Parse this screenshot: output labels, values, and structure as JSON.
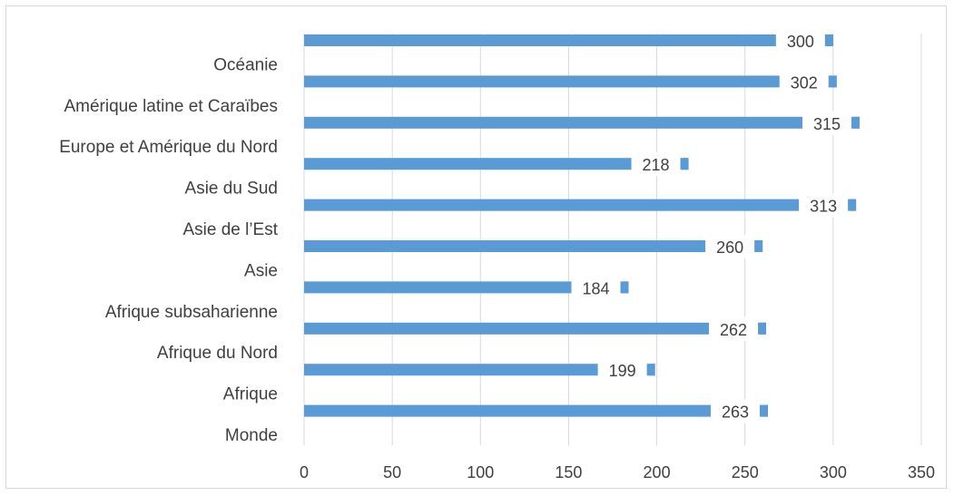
{
  "chart_data": {
    "type": "bar",
    "orientation": "horizontal",
    "categories": [
      "Monde",
      "Afrique",
      "Afrique du Nord",
      "Afrique subsaharienne",
      "Asie",
      "Asie de l’Est",
      "Asie du Sud",
      "Europe et Amérique du Nord",
      "Amérique latine et Caraïbes",
      "Océanie"
    ],
    "values": [
      263,
      199,
      262,
      184,
      260,
      313,
      218,
      315,
      302,
      300
    ],
    "data_labels": [
      "263",
      "199",
      "262",
      "184",
      "260",
      "313",
      "218",
      "315",
      "302",
      "300"
    ],
    "xlim": [
      0,
      350
    ],
    "x_ticks": [
      "0",
      "50",
      "100",
      "150",
      "200",
      "250",
      "300",
      "350"
    ],
    "title": "",
    "xlabel": "",
    "ylabel": "",
    "grid": "vertical",
    "legend": "none",
    "bar_color": "#5b9bd5",
    "gridline_color": "#d9d9d9",
    "text_color": "#404040"
  }
}
